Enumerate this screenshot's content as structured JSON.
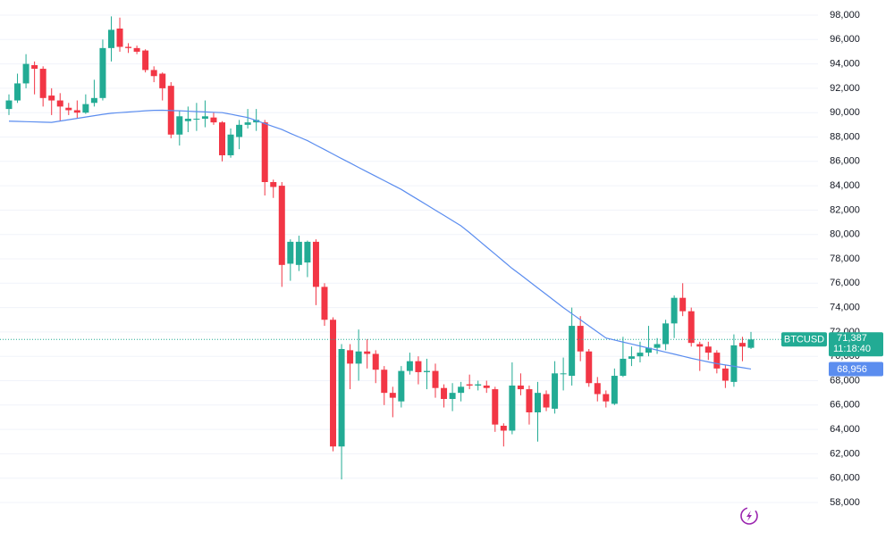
{
  "chart_data": {
    "type": "candlestick",
    "ylim": [
      55290,
      99245
    ],
    "yticks": [
      {
        "value": 58000,
        "label": "58,000"
      },
      {
        "value": 60000,
        "label": "60,000"
      },
      {
        "value": 62000,
        "label": "62,000"
      },
      {
        "value": 64000,
        "label": "64,000"
      },
      {
        "value": 66000,
        "label": "66,000"
      },
      {
        "value": 68000,
        "label": "68,000"
      },
      {
        "value": 70000,
        "label": "70,000"
      },
      {
        "value": 72000,
        "label": "72,000"
      },
      {
        "value": 74000,
        "label": "74,000"
      },
      {
        "value": 76000,
        "label": "76,000"
      },
      {
        "value": 78000,
        "label": "78,000"
      },
      {
        "value": 80000,
        "label": "80,000"
      },
      {
        "value": 82000,
        "label": "82,000"
      },
      {
        "value": 84000,
        "label": "84,000"
      },
      {
        "value": 86000,
        "label": "86,000"
      },
      {
        "value": 88000,
        "label": "88,000"
      },
      {
        "value": 90000,
        "label": "90,000"
      },
      {
        "value": 92000,
        "label": "92,000"
      },
      {
        "value": 94000,
        "label": "94,000"
      },
      {
        "value": 96000,
        "label": "96,000"
      },
      {
        "value": 98000,
        "label": "98,000"
      }
    ],
    "grid": true,
    "countdown": "11:18:40",
    "series": [
      {
        "name": "BTCUSD",
        "up_color": "#22ab94",
        "down_color": "#f23645",
        "open": [
          90300,
          91000,
          92400,
          93900,
          93600,
          91400,
          91000,
          90400,
          90200,
          90000,
          90800,
          91200,
          95300,
          96900,
          95400,
          95300,
          95100,
          93500,
          93200,
          92200,
          88200,
          89300,
          89500,
          89500,
          89600,
          89200,
          86500,
          88000,
          89000,
          89200,
          89200,
          84300,
          84000,
          77600,
          77500,
          77700,
          79400,
          75700,
          73000,
          62600,
          70500,
          69400,
          70400,
          70200,
          68900,
          67000,
          66300,
          68800,
          69600,
          68700,
          68800,
          67400,
          66500,
          67000,
          67700,
          67600,
          67600,
          67300,
          64300,
          63900,
          67600,
          67300,
          65400,
          66900,
          65700,
          68600,
          68400,
          72500,
          70400,
          67800,
          66900,
          66100,
          68400,
          69800,
          70000,
          70300,
          70700,
          71000,
          72700,
          74800,
          73700,
          71000,
          70800,
          70300,
          69000,
          67900,
          71100,
          70700
        ],
        "high": [
          91500,
          93200,
          94800,
          94200,
          93800,
          92000,
          91600,
          90800,
          91000,
          91500,
          92700,
          96000,
          97900,
          97800,
          95700,
          95500,
          95200,
          93800,
          93300,
          92500,
          90200,
          90500,
          90800,
          91000,
          90000,
          89300,
          88700,
          89400,
          90300,
          90300,
          89400,
          84500,
          84300,
          79600,
          79900,
          79500,
          79600,
          76000,
          73200,
          71000,
          71000,
          72200,
          71400,
          70500,
          69200,
          67500,
          69200,
          70300,
          70000,
          69800,
          69400,
          67700,
          67800,
          67900,
          68500,
          68000,
          68000,
          67500,
          64500,
          69500,
          68600,
          67600,
          67900,
          67200,
          69600,
          69900,
          74000,
          73300,
          70600,
          68300,
          67200,
          69000,
          71600,
          70800,
          71200,
          72500,
          71500,
          73000,
          75000,
          76000,
          74000,
          71200,
          71200,
          70500,
          69300,
          71800,
          71600,
          72000
        ],
        "low": [
          89800,
          90800,
          92000,
          91500,
          90500,
          89800,
          89300,
          89800,
          89500,
          89900,
          90500,
          91000,
          94200,
          95000,
          94900,
          94800,
          93300,
          92500,
          91000,
          87900,
          87300,
          88400,
          88500,
          88800,
          89000,
          86000,
          86300,
          87000,
          88700,
          88500,
          83200,
          83000,
          75700,
          76200,
          77000,
          76500,
          74200,
          72500,
          62200,
          59900,
          67300,
          68000,
          69000,
          67800,
          66000,
          65000,
          65800,
          68500,
          67700,
          67300,
          66600,
          65800,
          65500,
          66300,
          67300,
          67200,
          67000,
          63800,
          62600,
          63600,
          66800,
          64400,
          63000,
          65500,
          65300,
          67200,
          67600,
          69600,
          67500,
          66300,
          65800,
          66000,
          68300,
          69200,
          69500,
          70000,
          70200,
          70500,
          71500,
          73300,
          70800,
          68800,
          69700,
          68600,
          67400,
          67500,
          69600,
          70600
        ],
        "close": [
          91000,
          92400,
          94000,
          93600,
          91200,
          91000,
          90500,
          90200,
          90000,
          90700,
          91200,
          95300,
          96800,
          95400,
          95300,
          95000,
          93500,
          93000,
          92000,
          88200,
          89700,
          89500,
          89500,
          89700,
          89200,
          86500,
          88200,
          89000,
          89200,
          89400,
          84300,
          83900,
          77500,
          79400,
          79400,
          79400,
          75700,
          73000,
          62600,
          70600,
          69400,
          70400,
          70200,
          68900,
          67000,
          66600,
          68800,
          69600,
          68700,
          68800,
          67400,
          66500,
          67000,
          67500,
          67600,
          67700,
          67400,
          64400,
          63900,
          67600,
          67300,
          65400,
          67000,
          65800,
          68600,
          68600,
          72500,
          70400,
          67800,
          66900,
          66300,
          68400,
          69800,
          70000,
          70300,
          70700,
          71000,
          72700,
          74800,
          73700,
          71100,
          70800,
          70300,
          69000,
          68000,
          70900,
          70800,
          71387
        ],
        "last_label": "71,387"
      },
      {
        "type": "line",
        "color": "#5b8def",
        "values": [
          89300,
          89280,
          89260,
          89240,
          89220,
          89200,
          89310,
          89420,
          89530,
          89640,
          89750,
          89860,
          89950,
          90000,
          90050,
          90100,
          90150,
          90190,
          90200,
          90170,
          90150,
          90120,
          90090,
          90060,
          90030,
          90000,
          89870,
          89730,
          89600,
          89350,
          89100,
          88860,
          88620,
          88300,
          88000,
          87700,
          87330,
          86970,
          86600,
          86230,
          85870,
          85500,
          85140,
          84780,
          84420,
          84060,
          83700,
          83270,
          82850,
          82420,
          81990,
          81570,
          81140,
          80710,
          80150,
          79560,
          78970,
          78390,
          77800,
          77210,
          76690,
          76150,
          75610,
          75080,
          74540,
          74000,
          73500,
          73000,
          72500,
          72000,
          71500,
          71340,
          71170,
          71010,
          70840,
          70680,
          70510,
          70340,
          70180,
          70010,
          69840,
          69690,
          69540,
          69400,
          69290,
          69180,
          69070,
          68956
        ],
        "last_label": "68,956"
      }
    ]
  }
}
